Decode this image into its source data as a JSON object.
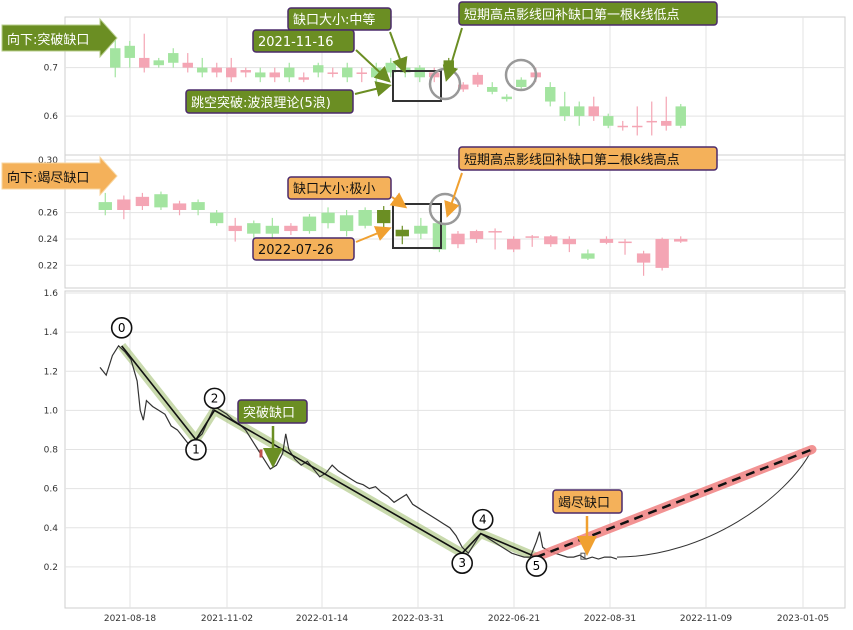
{
  "chart_data": [
    {
      "type": "candlestick",
      "panel": "top",
      "y_ticks": [
        "0.7",
        "0.6"
      ],
      "ylim": [
        0.53,
        0.79
      ],
      "colors": {
        "up": "#f4a5b4",
        "down": "#a3e4a0",
        "highlight_bar": "#6b8e23"
      },
      "candles": [
        {
          "o": 0.74,
          "c": 0.7,
          "h": 0.765,
          "l": 0.68
        },
        {
          "o": 0.745,
          "c": 0.72,
          "h": 0.755,
          "l": 0.7
        },
        {
          "o": 0.7,
          "c": 0.72,
          "h": 0.77,
          "l": 0.69
        },
        {
          "o": 0.715,
          "c": 0.705,
          "h": 0.72,
          "l": 0.7
        },
        {
          "o": 0.73,
          "c": 0.71,
          "h": 0.74,
          "l": 0.7
        },
        {
          "o": 0.7,
          "c": 0.71,
          "h": 0.73,
          "l": 0.69
        },
        {
          "o": 0.7,
          "c": 0.69,
          "h": 0.72,
          "l": 0.68
        },
        {
          "o": 0.69,
          "c": 0.7,
          "h": 0.71,
          "l": 0.68
        },
        {
          "o": 0.68,
          "c": 0.7,
          "h": 0.72,
          "l": 0.67
        },
        {
          "o": 0.69,
          "c": 0.695,
          "h": 0.7,
          "l": 0.68
        },
        {
          "o": 0.69,
          "c": 0.68,
          "h": 0.7,
          "l": 0.67
        },
        {
          "o": 0.68,
          "c": 0.69,
          "h": 0.7,
          "l": 0.67
        },
        {
          "o": 0.7,
          "c": 0.68,
          "h": 0.71,
          "l": 0.67
        },
        {
          "o": 0.675,
          "c": 0.68,
          "h": 0.69,
          "l": 0.67
        },
        {
          "o": 0.705,
          "c": 0.69,
          "h": 0.71,
          "l": 0.68
        },
        {
          "o": 0.69,
          "c": 0.69,
          "h": 0.7,
          "l": 0.68
        },
        {
          "o": 0.7,
          "c": 0.68,
          "h": 0.71,
          "l": 0.67
        },
        {
          "o": 0.69,
          "c": 0.69,
          "h": 0.7,
          "l": 0.67
        },
        {
          "o": 0.7,
          "c": 0.68,
          "h": 0.71,
          "l": 0.67
        },
        {
          "o": 0.71,
          "c": 0.69,
          "h": 0.72,
          "l": 0.68
        },
        {
          "o": 0.7,
          "c": 0.69,
          "h": 0.715,
          "l": 0.68
        },
        {
          "o": 0.7,
          "c": 0.68,
          "h": 0.705,
          "l": 0.67
        },
        {
          "o": 0.68,
          "c": 0.69,
          "h": 0.7,
          "l": 0.67
        },
        {
          "o": 0.715,
          "c": 0.695,
          "h": 0.72,
          "l": 0.69,
          "highlight": true
        },
        {
          "o": 0.655,
          "c": 0.665,
          "h": 0.67,
          "l": 0.65
        },
        {
          "o": 0.665,
          "c": 0.685,
          "h": 0.69,
          "l": 0.66
        },
        {
          "o": 0.66,
          "c": 0.65,
          "h": 0.67,
          "l": 0.645
        },
        {
          "o": 0.64,
          "c": 0.635,
          "h": 0.645,
          "l": 0.63
        },
        {
          "o": 0.675,
          "c": 0.66,
          "h": 0.68,
          "l": 0.655
        },
        {
          "o": 0.68,
          "c": 0.69,
          "h": 0.7,
          "l": 0.67
        },
        {
          "o": 0.66,
          "c": 0.63,
          "h": 0.67,
          "l": 0.62
        },
        {
          "o": 0.62,
          "c": 0.6,
          "h": 0.65,
          "l": 0.59
        },
        {
          "o": 0.62,
          "c": 0.6,
          "h": 0.63,
          "l": 0.58
        },
        {
          "o": 0.6,
          "c": 0.62,
          "h": 0.64,
          "l": 0.59
        },
        {
          "o": 0.6,
          "c": 0.58,
          "h": 0.605,
          "l": 0.575
        },
        {
          "o": 0.58,
          "c": 0.58,
          "h": 0.59,
          "l": 0.57
        },
        {
          "o": 0.58,
          "c": 0.58,
          "h": 0.62,
          "l": 0.56
        },
        {
          "o": 0.59,
          "c": 0.59,
          "h": 0.63,
          "l": 0.56
        },
        {
          "o": 0.58,
          "c": 0.59,
          "h": 0.64,
          "l": 0.57
        },
        {
          "o": 0.62,
          "c": 0.58,
          "h": 0.625,
          "l": 0.575
        }
      ],
      "annotations": {
        "title_tag": "向下:突破缺口",
        "date": "2021-11-16",
        "gap_size": "缺口大小:中等",
        "fill_note": "短期高点影线回补缺口第一根k线低点",
        "wave_note": "跳空突破:波浪理论(5浪)"
      }
    },
    {
      "type": "candlestick",
      "panel": "middle",
      "y_ticks": [
        "0.30",
        "0.26",
        "0.24",
        "0.22"
      ],
      "ylim": [
        0.205,
        0.3
      ],
      "colors": {
        "up": "#f4a5b4",
        "down": "#a3e4a0",
        "highlight_bar": "#6b8e23"
      },
      "candles": [
        {
          "o": 0.268,
          "c": 0.262,
          "h": 0.275,
          "l": 0.258
        },
        {
          "o": 0.262,
          "c": 0.27,
          "h": 0.273,
          "l": 0.255
        },
        {
          "o": 0.265,
          "c": 0.272,
          "h": 0.275,
          "l": 0.262
        },
        {
          "o": 0.274,
          "c": 0.264,
          "h": 0.276,
          "l": 0.262
        },
        {
          "o": 0.262,
          "c": 0.267,
          "h": 0.269,
          "l": 0.258
        },
        {
          "o": 0.268,
          "c": 0.262,
          "h": 0.27,
          "l": 0.258
        },
        {
          "o": 0.26,
          "c": 0.252,
          "h": 0.262,
          "l": 0.25
        },
        {
          "o": 0.246,
          "c": 0.25,
          "h": 0.256,
          "l": 0.238
        },
        {
          "o": 0.252,
          "c": 0.244,
          "h": 0.254,
          "l": 0.24
        },
        {
          "o": 0.25,
          "c": 0.244,
          "h": 0.256,
          "l": 0.24
        },
        {
          "o": 0.246,
          "c": 0.25,
          "h": 0.252,
          "l": 0.243
        },
        {
          "o": 0.257,
          "c": 0.246,
          "h": 0.259,
          "l": 0.244
        },
        {
          "o": 0.26,
          "c": 0.252,
          "h": 0.264,
          "l": 0.248
        },
        {
          "o": 0.258,
          "c": 0.246,
          "h": 0.262,
          "l": 0.242
        },
        {
          "o": 0.262,
          "c": 0.25,
          "h": 0.264,
          "l": 0.248
        },
        {
          "o": 0.262,
          "c": 0.252,
          "h": 0.265,
          "l": 0.245,
          "highlight": true
        },
        {
          "o": 0.247,
          "c": 0.242,
          "h": 0.25,
          "l": 0.236,
          "highlight": true
        },
        {
          "o": 0.25,
          "c": 0.244,
          "h": 0.256,
          "l": 0.24
        },
        {
          "o": 0.252,
          "c": 0.232,
          "h": 0.254,
          "l": 0.23
        },
        {
          "o": 0.236,
          "c": 0.244,
          "h": 0.246,
          "l": 0.233
        },
        {
          "o": 0.24,
          "c": 0.246,
          "h": 0.247,
          "l": 0.237
        },
        {
          "o": 0.246,
          "c": 0.246,
          "h": 0.248,
          "l": 0.232
        },
        {
          "o": 0.232,
          "c": 0.24,
          "h": 0.242,
          "l": 0.23
        },
        {
          "o": 0.242,
          "c": 0.242,
          "h": 0.243,
          "l": 0.234
        },
        {
          "o": 0.236,
          "c": 0.242,
          "h": 0.243,
          "l": 0.234
        },
        {
          "o": 0.236,
          "c": 0.24,
          "h": 0.242,
          "l": 0.23
        },
        {
          "o": 0.229,
          "c": 0.225,
          "h": 0.232,
          "l": 0.224
        },
        {
          "o": 0.237,
          "c": 0.24,
          "h": 0.242,
          "l": 0.236
        },
        {
          "o": 0.238,
          "c": 0.238,
          "h": 0.24,
          "l": 0.228
        },
        {
          "o": 0.222,
          "c": 0.229,
          "h": 0.231,
          "l": 0.212
        },
        {
          "o": 0.218,
          "c": 0.24,
          "h": 0.241,
          "l": 0.216
        },
        {
          "o": 0.238,
          "c": 0.24,
          "h": 0.242,
          "l": 0.237
        }
      ],
      "annotations": {
        "title_tag": "向下:竭尽缺口",
        "date": "2022-07-26",
        "gap_size": "缺口大小:极小",
        "fill_note": "短期高点影线回补缺口第二根k线高点"
      }
    },
    {
      "type": "line",
      "panel": "bottom",
      "y_ticks": [
        "1.6",
        "1.4",
        "1.2",
        "1.0",
        "0.8",
        "0.6",
        "0.4",
        "0.2"
      ],
      "ylim": [
        0.0,
        1.6
      ],
      "x_tick_labels": [
        "2021-08-18",
        "2021-11-02",
        "2022-01-14",
        "2022-03-31",
        "2022-06-21",
        "2022-08-31",
        "2022-11-09",
        "2023-01-05"
      ],
      "price_series": [
        [
          0,
          1.22
        ],
        [
          2,
          1.18
        ],
        [
          4,
          1.28
        ],
        [
          6,
          1.33
        ],
        [
          8,
          1.3
        ],
        [
          10,
          1.26
        ],
        [
          12,
          1.15
        ],
        [
          13,
          1.0
        ],
        [
          14,
          0.95
        ],
        [
          15,
          1.05
        ],
        [
          17,
          1.02
        ],
        [
          19,
          1.0
        ],
        [
          21,
          0.98
        ],
        [
          23,
          0.92
        ],
        [
          25,
          0.9
        ],
        [
          27,
          0.86
        ],
        [
          29,
          0.82
        ],
        [
          31,
          0.85
        ],
        [
          33,
          0.88
        ],
        [
          35,
          0.95
        ],
        [
          37,
          1.02
        ],
        [
          39,
          1.0
        ],
        [
          41,
          0.98
        ],
        [
          43,
          0.95
        ],
        [
          45,
          0.93
        ],
        [
          47,
          0.9
        ],
        [
          49,
          0.85
        ],
        [
          51,
          0.8
        ],
        [
          53,
          0.75
        ],
        [
          55,
          0.7
        ],
        [
          57,
          0.72
        ],
        [
          59,
          0.78
        ],
        [
          60,
          0.88
        ],
        [
          61,
          0.8
        ],
        [
          63,
          0.75
        ],
        [
          65,
          0.72
        ],
        [
          67,
          0.74
        ],
        [
          69,
          0.7
        ],
        [
          71,
          0.66
        ],
        [
          73,
          0.68
        ],
        [
          75,
          0.72
        ],
        [
          77,
          0.69
        ],
        [
          79,
          0.67
        ],
        [
          81,
          0.65
        ],
        [
          83,
          0.63
        ],
        [
          85,
          0.62
        ],
        [
          87,
          0.6
        ],
        [
          89,
          0.61
        ],
        [
          91,
          0.58
        ],
        [
          93,
          0.56
        ],
        [
          95,
          0.53
        ],
        [
          97,
          0.55
        ],
        [
          99,
          0.57
        ],
        [
          101,
          0.52
        ],
        [
          103,
          0.5
        ],
        [
          105,
          0.48
        ],
        [
          107,
          0.46
        ],
        [
          109,
          0.44
        ],
        [
          111,
          0.42
        ],
        [
          113,
          0.4
        ],
        [
          115,
          0.36
        ],
        [
          117,
          0.3
        ],
        [
          119,
          0.27
        ],
        [
          121,
          0.32
        ],
        [
          123,
          0.37
        ],
        [
          125,
          0.35
        ],
        [
          127,
          0.33
        ],
        [
          129,
          0.31
        ],
        [
          131,
          0.29
        ],
        [
          133,
          0.27
        ],
        [
          135,
          0.26
        ],
        [
          137,
          0.25
        ],
        [
          139,
          0.25
        ],
        [
          141,
          0.33
        ],
        [
          142,
          0.38
        ],
        [
          143,
          0.3
        ],
        [
          145,
          0.28
        ],
        [
          147,
          0.27
        ],
        [
          149,
          0.26
        ],
        [
          151,
          0.25
        ],
        [
          153,
          0.25
        ],
        [
          155,
          0.26
        ],
        [
          157,
          0.24
        ],
        [
          159,
          0.25
        ],
        [
          161,
          0.24
        ],
        [
          163,
          0.25
        ],
        [
          165,
          0.25
        ],
        [
          167,
          0.24
        ]
      ],
      "wave_points": [
        {
          "label": "0",
          "x": 7,
          "y": 1.33
        },
        {
          "label": "1",
          "x": 31,
          "y": 0.85
        },
        {
          "label": "2",
          "x": 37,
          "y": 1.0
        },
        {
          "label": "3",
          "x": 117,
          "y": 0.27
        },
        {
          "label": "4",
          "x": 123,
          "y": 0.37
        },
        {
          "label": "5",
          "x": 141,
          "y": 0.25
        }
      ],
      "projection": {
        "from": {
          "x": 141,
          "y": 0.25
        },
        "to": {
          "x": 230,
          "y": 0.8
        }
      },
      "projection_curve": [
        [
          167,
          0.25
        ],
        [
          180,
          0.24
        ],
        [
          195,
          0.25
        ],
        [
          210,
          0.32
        ],
        [
          222,
          0.55
        ],
        [
          230,
          0.8
        ]
      ],
      "annotations": {
        "breakout_label": "突破缺口",
        "exhaustion_label": "竭尽缺口"
      }
    }
  ]
}
